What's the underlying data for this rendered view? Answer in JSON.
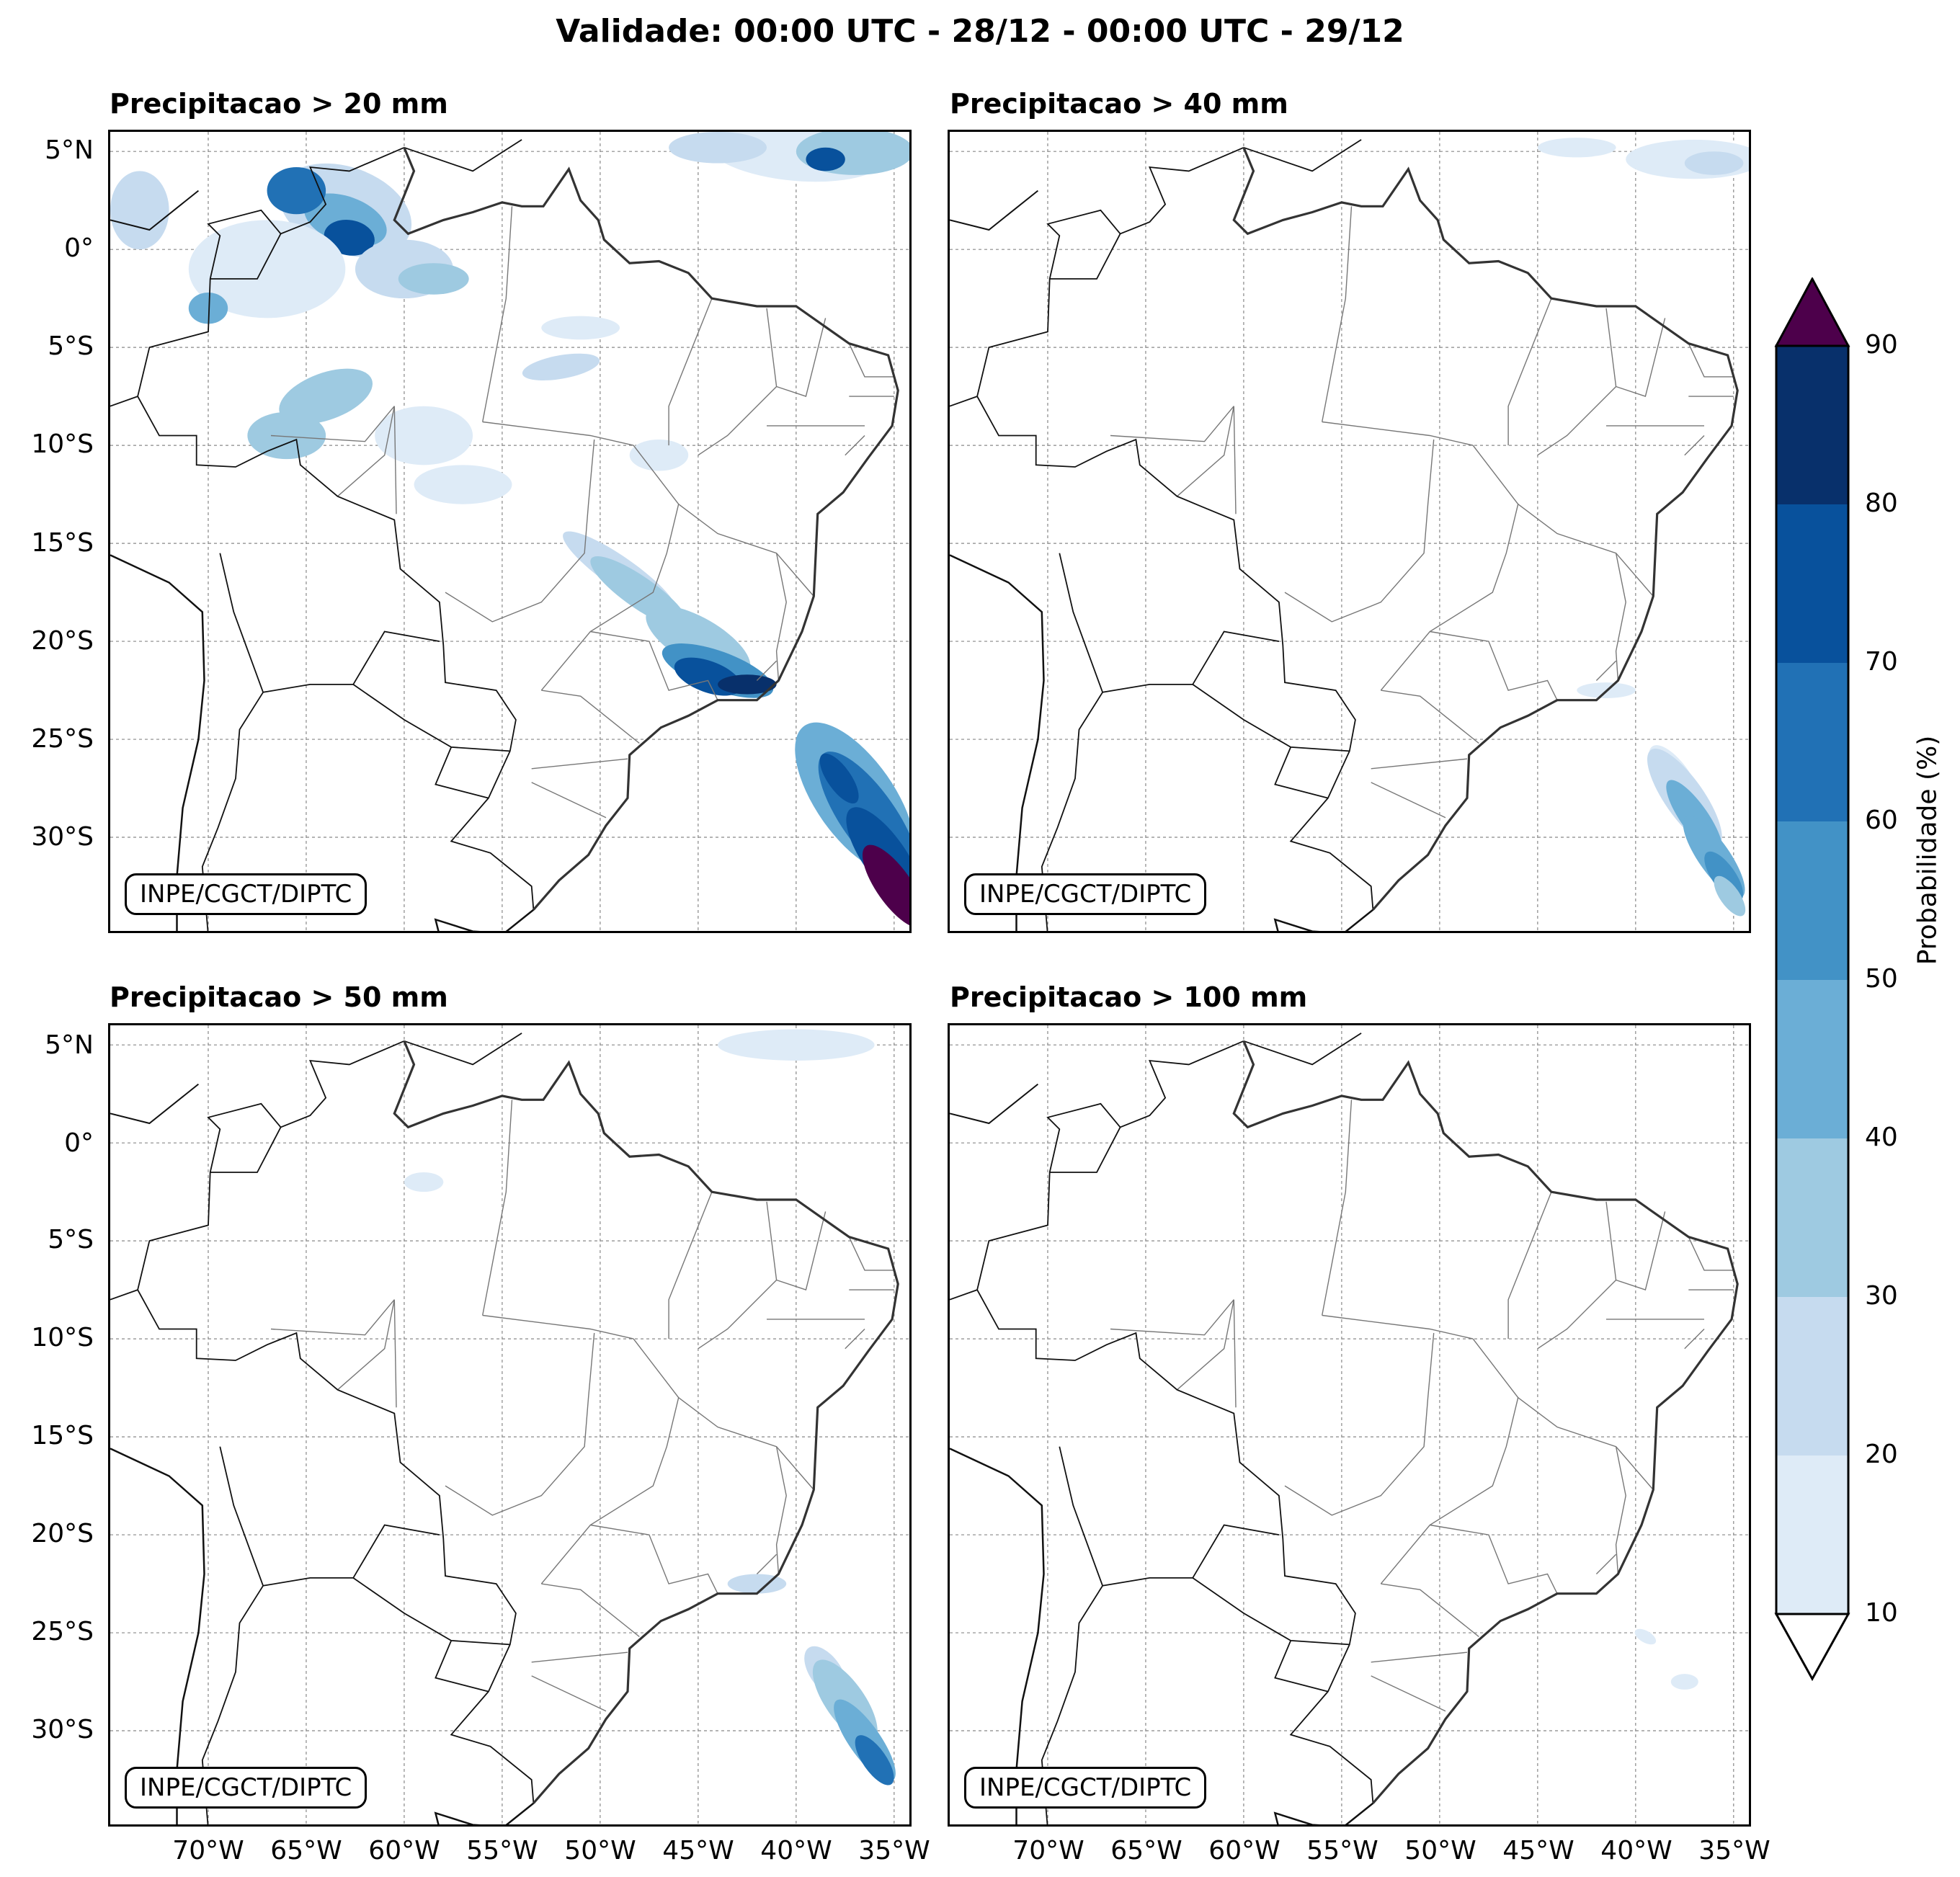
{
  "title": "Validade: 00:00 UTC - 28/12 - 00:00 UTC - 29/12",
  "credit": "INPE/CGCT/DIPTC",
  "lat_ticks": [
    "5°N",
    "0°",
    "5°S",
    "10°S",
    "15°S",
    "20°S",
    "25°S",
    "30°S"
  ],
  "lon_ticks": [
    "70°W",
    "65°W",
    "60°W",
    "55°W",
    "50°W",
    "45°W",
    "40°W",
    "35°W"
  ],
  "panels": [
    {
      "title": "Precipitacao > 20 mm"
    },
    {
      "title": "Precipitacao > 40 mm"
    },
    {
      "title": "Precipitacao > 50 mm"
    },
    {
      "title": "Precipitacao > 100 mm"
    }
  ],
  "colorbar": {
    "label": "Probabilidade (%)",
    "ticks": [
      "10",
      "20",
      "30",
      "40",
      "50",
      "60",
      "70",
      "80",
      "90"
    ],
    "colors": [
      "#deebf7",
      "#c6dbef",
      "#9ecae1",
      "#6baed6",
      "#4292c6",
      "#2171b5",
      "#08519c",
      "#08306b"
    ],
    "over_color": "#4d004b",
    "under_color": "#ffffff"
  },
  "palette": {
    "p10": "#deebf7",
    "p20": "#c6dbef",
    "p30": "#9ecae1",
    "p40": "#6baed6",
    "p50": "#4292c6",
    "p60": "#2171b5",
    "p70": "#08519c",
    "p80": "#08306b",
    "p90": "#4d004b"
  }
}
